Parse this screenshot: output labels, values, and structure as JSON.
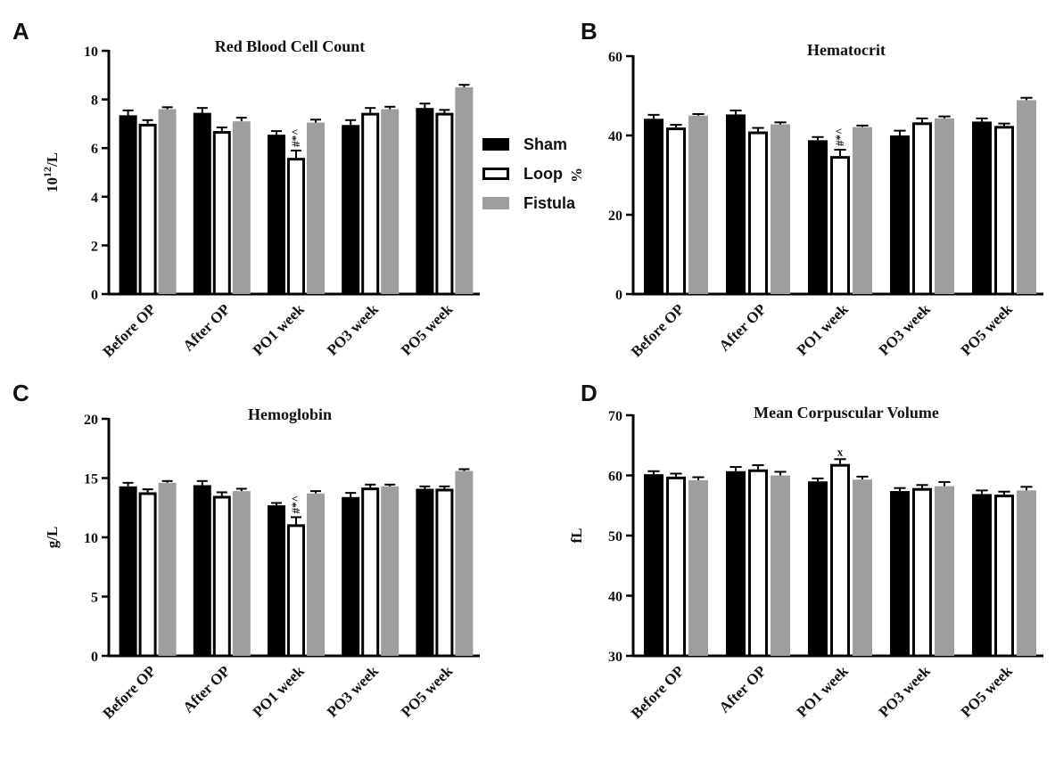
{
  "figure": {
    "legend": {
      "items": [
        {
          "label": "Sham",
          "color": "#000000",
          "style": "filled"
        },
        {
          "label": "Loop",
          "color": "#ffffff",
          "style": "outlined"
        },
        {
          "label": "Fistula",
          "color": "#9e9e9e",
          "style": "filled"
        }
      ]
    }
  },
  "chart_data": [
    {
      "panel": "A",
      "type": "bar",
      "title": "Red Blood Cell Count",
      "ylabel": "10",
      "ylabel_sup": "12",
      "ylabel_tail": "/L",
      "ylim": [
        0,
        10
      ],
      "yticks": [
        0,
        2,
        4,
        6,
        8,
        10
      ],
      "categories": [
        "Before OP",
        "After OP",
        "PO1 week",
        "PO3 week",
        "PO5 week"
      ],
      "series": [
        {
          "name": "Sham",
          "values": [
            7.35,
            7.45,
            6.55,
            6.95,
            7.65
          ],
          "errors": [
            0.2,
            0.2,
            0.15,
            0.2,
            0.18
          ]
        },
        {
          "name": "Loop",
          "values": [
            7.0,
            6.7,
            5.6,
            7.45,
            7.45
          ],
          "errors": [
            0.15,
            0.15,
            0.3,
            0.2,
            0.12
          ]
        },
        {
          "name": "Fistula",
          "values": [
            7.6,
            7.1,
            7.05,
            7.6,
            8.5
          ],
          "errors": [
            0.08,
            0.15,
            0.12,
            0.1,
            0.1
          ]
        }
      ],
      "annotations": [
        {
          "category": 2,
          "series": 1,
          "text": "#*^"
        }
      ]
    },
    {
      "panel": "B",
      "type": "bar",
      "title": "Hematocrit",
      "ylabel": "%",
      "ylim": [
        0,
        60
      ],
      "yticks": [
        0,
        20,
        40,
        60
      ],
      "categories": [
        "Before OP",
        "After OP",
        "PO1 week",
        "PO3 week",
        "PO5 week"
      ],
      "series": [
        {
          "name": "Sham",
          "values": [
            44.2,
            45.3,
            38.8,
            40.0,
            43.5
          ],
          "errors": [
            1.0,
            1.0,
            0.8,
            1.2,
            0.8
          ]
        },
        {
          "name": "Loop",
          "values": [
            42.0,
            41.0,
            34.8,
            43.3,
            42.4
          ],
          "errors": [
            0.7,
            0.9,
            1.6,
            1.0,
            0.6
          ]
        },
        {
          "name": "Fistula",
          "values": [
            45.0,
            42.8,
            42.1,
            44.3,
            48.9
          ],
          "errors": [
            0.4,
            0.5,
            0.4,
            0.5,
            0.6
          ]
        }
      ],
      "annotations": [
        {
          "category": 2,
          "series": 1,
          "text": "#*^"
        }
      ]
    },
    {
      "panel": "C",
      "type": "bar",
      "title": "Hemoglobin",
      "ylabel": "g/L",
      "ylim": [
        0,
        20
      ],
      "yticks": [
        0,
        5,
        10,
        15,
        20
      ],
      "categories": [
        "Before OP",
        "After OP",
        "PO1 week",
        "PO3 week",
        "PO5 week"
      ],
      "series": [
        {
          "name": "Sham",
          "values": [
            14.3,
            14.4,
            12.7,
            13.4,
            14.1
          ],
          "errors": [
            0.3,
            0.35,
            0.2,
            0.35,
            0.2
          ]
        },
        {
          "name": "Loop",
          "values": [
            13.8,
            13.5,
            11.1,
            14.2,
            14.1
          ],
          "errors": [
            0.25,
            0.3,
            0.6,
            0.25,
            0.2
          ]
        },
        {
          "name": "Fistula",
          "values": [
            14.6,
            13.9,
            13.7,
            14.3,
            15.6
          ],
          "errors": [
            0.15,
            0.2,
            0.2,
            0.15,
            0.15
          ]
        }
      ],
      "annotations": [
        {
          "category": 2,
          "series": 1,
          "text": "#*^"
        }
      ]
    },
    {
      "panel": "D",
      "type": "bar",
      "title": "Mean Corpuscular Volume",
      "ylabel": "fL",
      "ylim": [
        30,
        70
      ],
      "yticks": [
        30,
        40,
        50,
        60,
        70
      ],
      "categories": [
        "Before OP",
        "After OP",
        "PO1 week",
        "PO3 week",
        "PO5 week"
      ],
      "series": [
        {
          "name": "Sham",
          "values": [
            60.2,
            60.7,
            59.0,
            57.4,
            56.9
          ],
          "errors": [
            0.5,
            0.7,
            0.5,
            0.5,
            0.6
          ]
        },
        {
          "name": "Loop",
          "values": [
            59.8,
            61.0,
            61.9,
            57.9,
            56.8
          ],
          "errors": [
            0.5,
            0.7,
            0.8,
            0.5,
            0.5
          ]
        },
        {
          "name": "Fistula",
          "values": [
            59.2,
            60.0,
            59.3,
            58.2,
            57.5
          ],
          "errors": [
            0.5,
            0.6,
            0.5,
            0.7,
            0.6
          ]
        }
      ],
      "annotations": [
        {
          "category": 2,
          "series": 1,
          "text": "x"
        }
      ]
    }
  ]
}
